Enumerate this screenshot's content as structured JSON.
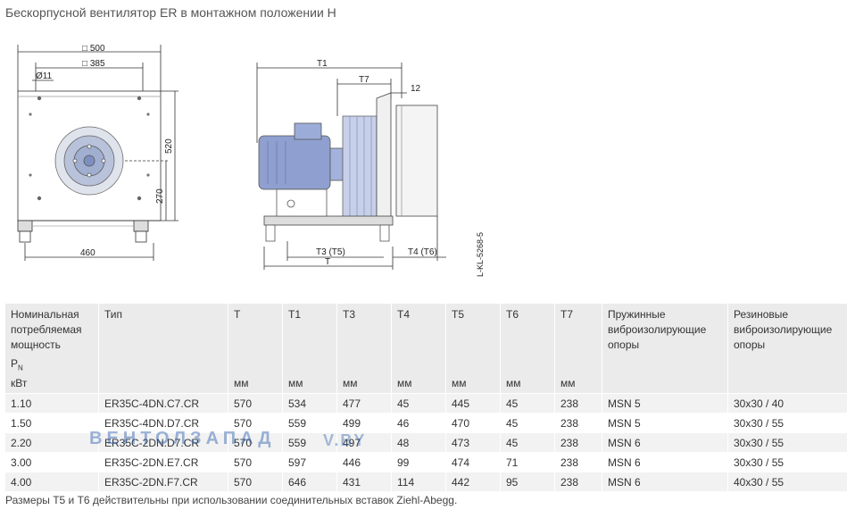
{
  "title": "Бескорпусной вентилятор ER в монтажном положении H",
  "drawing": {
    "front": {
      "dim_500": "□ 500",
      "dim_385": "□ 385",
      "dim_11": "Ø11",
      "dim_520": "520",
      "dim_270": "270",
      "dim_460": "460"
    },
    "side": {
      "T1": "T1",
      "T7": "T7",
      "dim_12": "12",
      "T3T5": "T3 (T5)",
      "T": "T",
      "T4T6": "T4 (T6)"
    },
    "code": "L-KL-5268-5"
  },
  "table": {
    "headers": [
      {
        "label": "Номинальная потребляемая мощность",
        "unit": "кВт"
      },
      {
        "label": "Тип",
        "unit": ""
      },
      {
        "label": "T",
        "unit": "мм"
      },
      {
        "label": "T1",
        "unit": "мм"
      },
      {
        "label": "T3",
        "unit": "мм"
      },
      {
        "label": "T4",
        "unit": "мм"
      },
      {
        "label": "T5",
        "unit": "мм"
      },
      {
        "label": "T6",
        "unit": "мм"
      },
      {
        "label": "T7",
        "unit": "мм"
      },
      {
        "label": "Пружинные виброизолирующие опоры",
        "unit": ""
      },
      {
        "label": "Резиновые виброизолирующие опоры",
        "unit": ""
      }
    ],
    "power_symbol": "P",
    "power_sub": "N",
    "rows": [
      [
        "1.10",
        "ER35C-4DN.C7.CR",
        "570",
        "534",
        "477",
        "45",
        "445",
        "45",
        "238",
        "MSN 5",
        "30x30 / 40"
      ],
      [
        "1.50",
        "ER35C-4DN.D7.CR",
        "570",
        "559",
        "499",
        "46",
        "470",
        "45",
        "238",
        "MSN 5",
        "30x30 / 55"
      ],
      [
        "2.20",
        "ER35C-2DN.D7.CR",
        "570",
        "559",
        "497",
        "48",
        "473",
        "45",
        "238",
        "MSN 6",
        "30x30 / 55"
      ],
      [
        "3.00",
        "ER35C-2DN.E7.CR",
        "570",
        "597",
        "446",
        "99",
        "474",
        "71",
        "238",
        "MSN 6",
        "30x30 / 55"
      ],
      [
        "4.00",
        "ER35C-2DN.F7.CR",
        "570",
        "646",
        "431",
        "114",
        "442",
        "95",
        "238",
        "MSN 6",
        "40x30 / 55"
      ]
    ]
  },
  "watermark": {
    "left": "ВЕНТОЛЗАПАД",
    "right": "V.BY"
  },
  "note": "Размеры T5 и T6 действительны при использовании соединительных вставок Ziehl-Abegg."
}
